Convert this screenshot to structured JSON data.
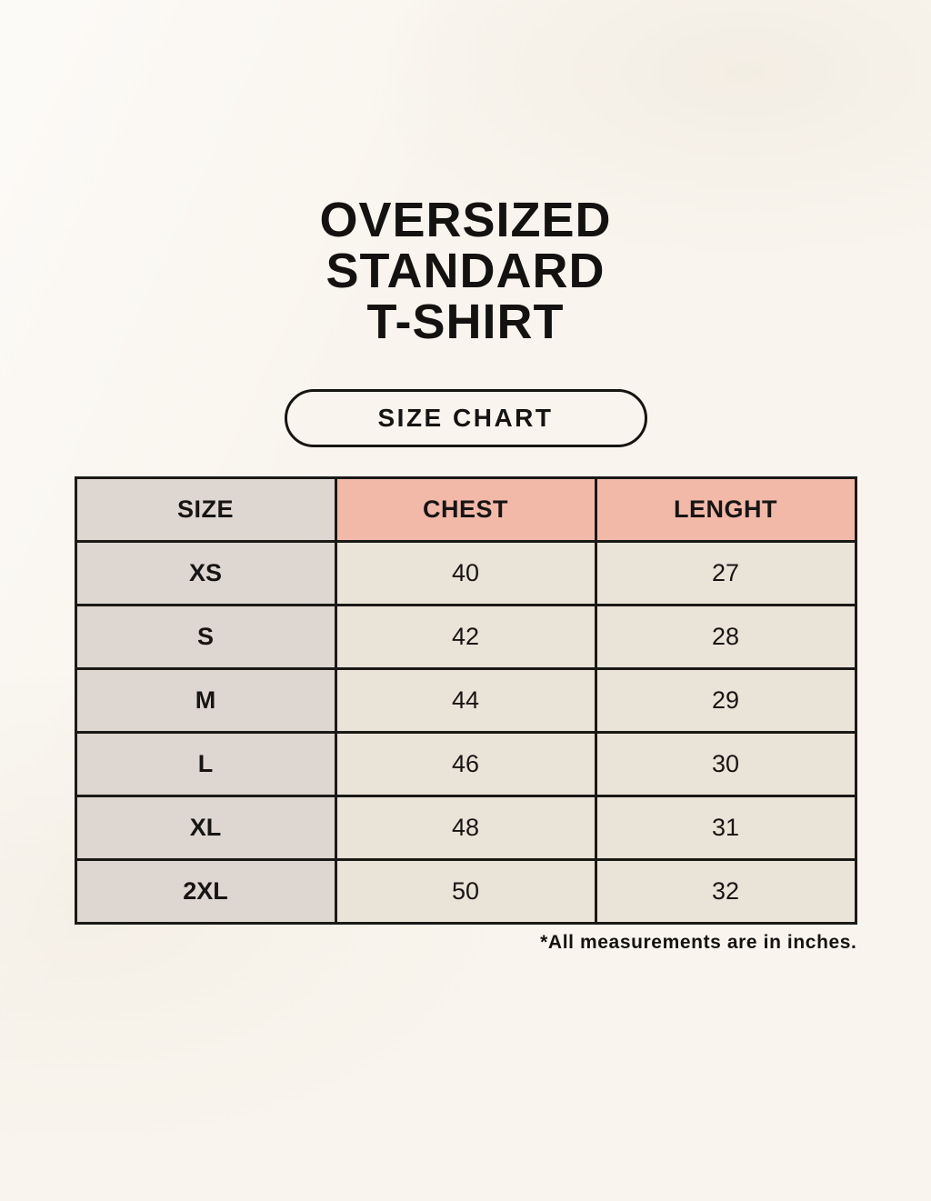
{
  "page": {
    "title_lines": [
      "OVERSIZED",
      "STANDARD",
      "T-SHIRT"
    ],
    "size_chart_label": "SIZE CHART",
    "footnote": "*All measurements are in inches."
  },
  "chart_data": {
    "type": "table",
    "title": "OVERSIZED STANDARD T-SHIRT",
    "subtitle": "SIZE CHART",
    "columns": [
      "SIZE",
      "CHEST",
      "LENGHT"
    ],
    "rows": [
      [
        "XS",
        "40",
        "27"
      ],
      [
        "S",
        "42",
        "28"
      ],
      [
        "M",
        "44",
        "29"
      ],
      [
        "L",
        "46",
        "30"
      ],
      [
        "XL",
        "48",
        "31"
      ],
      [
        "2XL",
        "50",
        "32"
      ]
    ],
    "unit_note": "*All measurements are in inches."
  },
  "colors": {
    "background": "#f9f5ee",
    "accent_header": "#f2b9a9",
    "size_column": "#ddd6d1",
    "data_cell": "#eae3d8",
    "border": "#1b1916",
    "text": "#171513"
  }
}
